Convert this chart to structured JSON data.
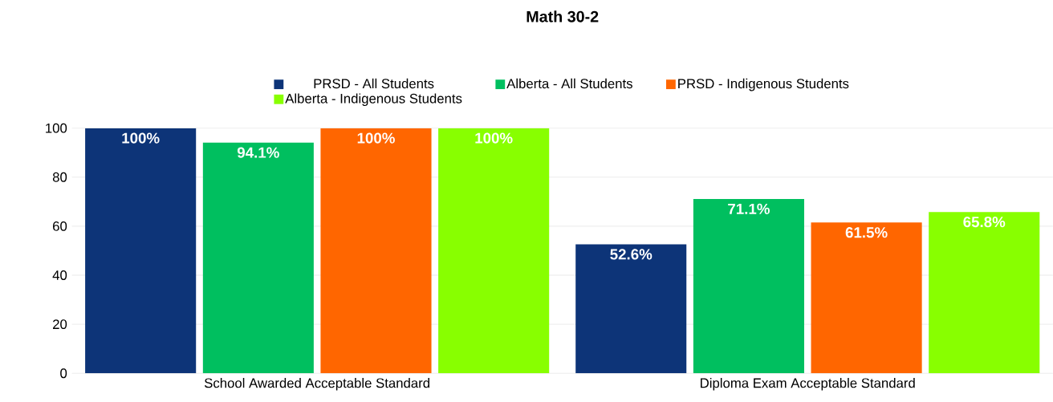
{
  "chart_data": {
    "type": "bar",
    "title": "Math 30-2",
    "categories": [
      "School Awarded Acceptable Standard",
      "Diploma Exam Acceptable Standard"
    ],
    "series": [
      {
        "name": "PRSD - All Students",
        "color": "#0d3478",
        "values": [
          100,
          52.6
        ],
        "value_labels": [
          "100%",
          "52.6%"
        ]
      },
      {
        "name": "Alberta - All Students",
        "color": "#00bf5f",
        "values": [
          94.1,
          71.1
        ],
        "value_labels": [
          "94.1%",
          "71.1%"
        ]
      },
      {
        "name": "PRSD - Indigenous Students",
        "color": "#ff6600",
        "values": [
          100,
          61.5
        ],
        "value_labels": [
          "100%",
          "61.5%"
        ]
      },
      {
        "name": "Alberta - Indigenous Students",
        "color": "#88ff00",
        "values": [
          100,
          65.8
        ],
        "value_labels": [
          "100%",
          "65.8%"
        ]
      }
    ],
    "ylim": [
      0,
      100
    ],
    "yticks": [
      0,
      20,
      40,
      60,
      80,
      100
    ],
    "grid": "y",
    "legend": "top"
  }
}
